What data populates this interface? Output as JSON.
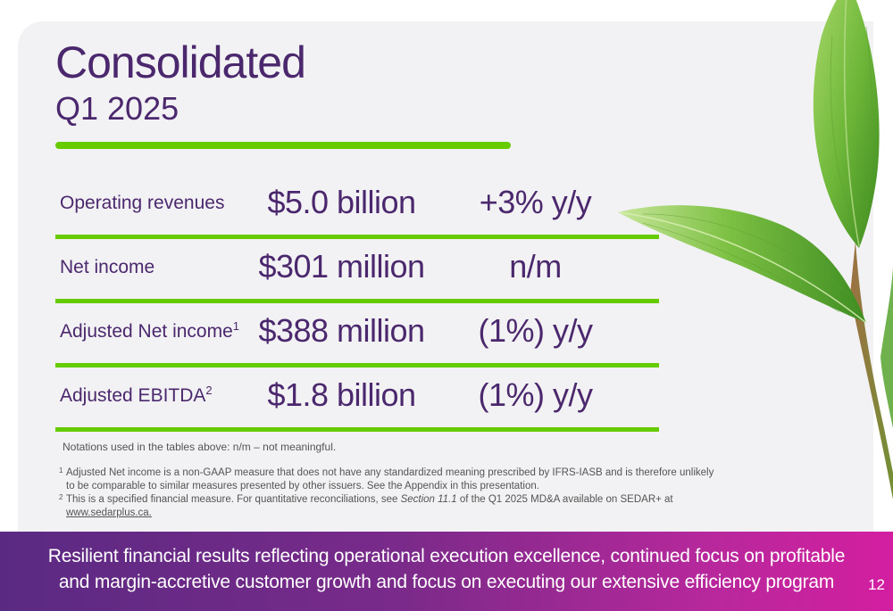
{
  "title": "Consolidated",
  "subtitle": "Q1 2025",
  "metrics": [
    {
      "label": "Operating revenues",
      "sup": "",
      "value": "$5.0 billion",
      "change": "+3% y/y"
    },
    {
      "label": "Net income",
      "sup": "",
      "value": "$301 million",
      "change": "n/m"
    },
    {
      "label": "Adjusted Net income",
      "sup": "1",
      "value": "$388 million",
      "change": "(1%) y/y"
    },
    {
      "label": "Adjusted EBITDA",
      "sup": "2",
      "value": "$1.8 billion",
      "change": "(1%) y/y"
    }
  ],
  "notation": "Notations used in the tables above: n/m – not meaningful.",
  "footnotes": {
    "fn1": {
      "num": "1",
      "text": "Adjusted Net income is a non-GAAP measure that does not have any standardized meaning prescribed by IFRS-IASB and is therefore unlikely to be comparable to similar measures presented by other issuers. See the Appendix in this presentation."
    },
    "fn2": {
      "num": "2",
      "text_before": "This is a specified financial measure. For quantitative reconciliations, see ",
      "section": "Section 11.1",
      "text_after": " of the Q1 2025 MD&A available on SEDAR+ at ",
      "link": "www.sedarplus.ca."
    }
  },
  "banner": {
    "line1": "Resilient financial results reflecting operational execution excellence, continued focus on profitable",
    "line2": "and margin-accretive customer growth and focus on executing our extensive efficiency program"
  },
  "page_number": "12",
  "colors": {
    "purple": "#4b286d",
    "green": "#66cc00",
    "banner_start": "#5a2a82",
    "banner_end": "#d31ea0"
  }
}
